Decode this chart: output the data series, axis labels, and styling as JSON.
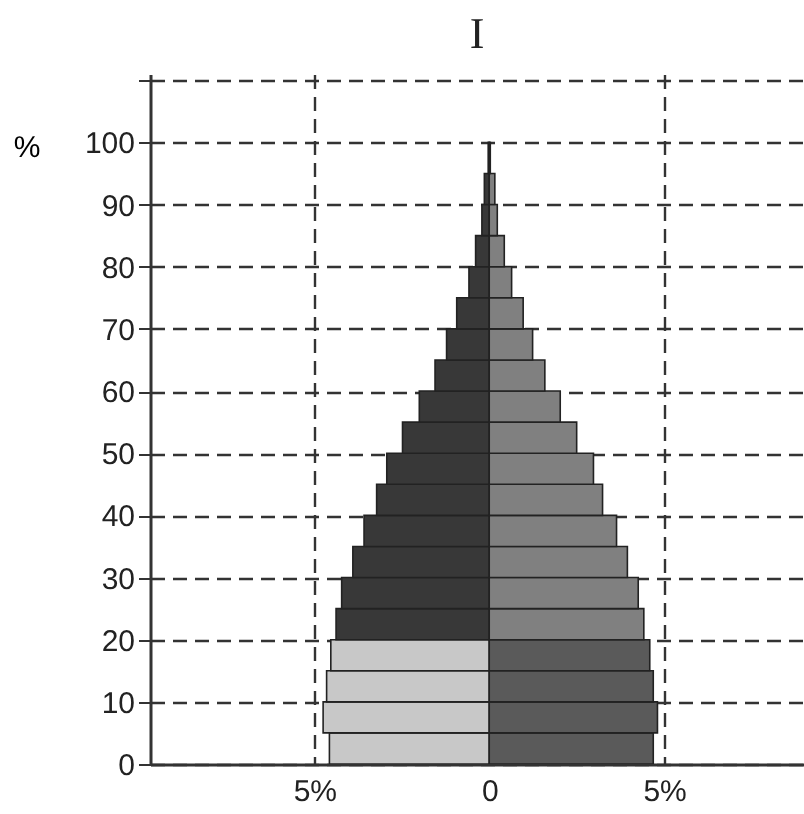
{
  "chart_data": {
    "type": "bar",
    "title": "I",
    "ylabel": "%",
    "orientation": "horizontal",
    "stacked": true,
    "x": [
      2.5,
      7.5,
      12.5,
      17.5,
      22.5,
      27.5,
      32.5,
      37.5,
      42.5,
      47.5,
      52.5,
      57.5,
      62.5,
      67.5,
      72.5,
      77.5,
      82.5,
      87.5,
      92.5,
      97.5
    ],
    "series": [
      {
        "values": [
          -4.57,
          -4.75,
          -4.65,
          -4.53,
          -4.38,
          -4.22,
          -3.9,
          -3.58,
          -3.22,
          -2.93,
          -2.48,
          -2.0,
          -1.55,
          -1.22,
          -0.93,
          -0.58,
          -0.39,
          -0.21,
          -0.14,
          -0.03
        ],
        "colors": [
          "#c8c8c8",
          "#c8c8c8",
          "#c8c8c8",
          "#c8c8c8",
          "#383838",
          "#383838",
          "#383838",
          "#383838",
          "#383838",
          "#383838",
          "#383838",
          "#383838",
          "#383838",
          "#383838",
          "#383838",
          "#383838",
          "#383838",
          "#383838",
          "#383838",
          "#383838"
        ]
      },
      {
        "values": [
          4.69,
          4.81,
          4.69,
          4.59,
          4.42,
          4.26,
          3.95,
          3.64,
          3.24,
          2.98,
          2.5,
          2.03,
          1.59,
          1.24,
          0.97,
          0.64,
          0.43,
          0.23,
          0.16,
          0.03
        ],
        "colors": [
          "#5a5a5a",
          "#5a5a5a",
          "#5a5a5a",
          "#5a5a5a",
          "#808080",
          "#808080",
          "#808080",
          "#808080",
          "#808080",
          "#808080",
          "#808080",
          "#808080",
          "#808080",
          "#808080",
          "#808080",
          "#808080",
          "#808080",
          "#808080",
          "#808080",
          "#808080"
        ]
      }
    ],
    "xlim": [
      -9.7,
      9.0
    ],
    "xticks": [
      {
        "value": -5,
        "label": "5%"
      },
      0,
      {
        "value": 5,
        "label": "5%"
      }
    ],
    "ylim": [
      0,
      111
    ],
    "yticks": [
      0,
      10,
      20,
      30,
      40,
      50,
      60,
      70,
      80,
      90,
      100,
      {
        "value": 110,
        "label": null
      }
    ],
    "grid": true
  }
}
